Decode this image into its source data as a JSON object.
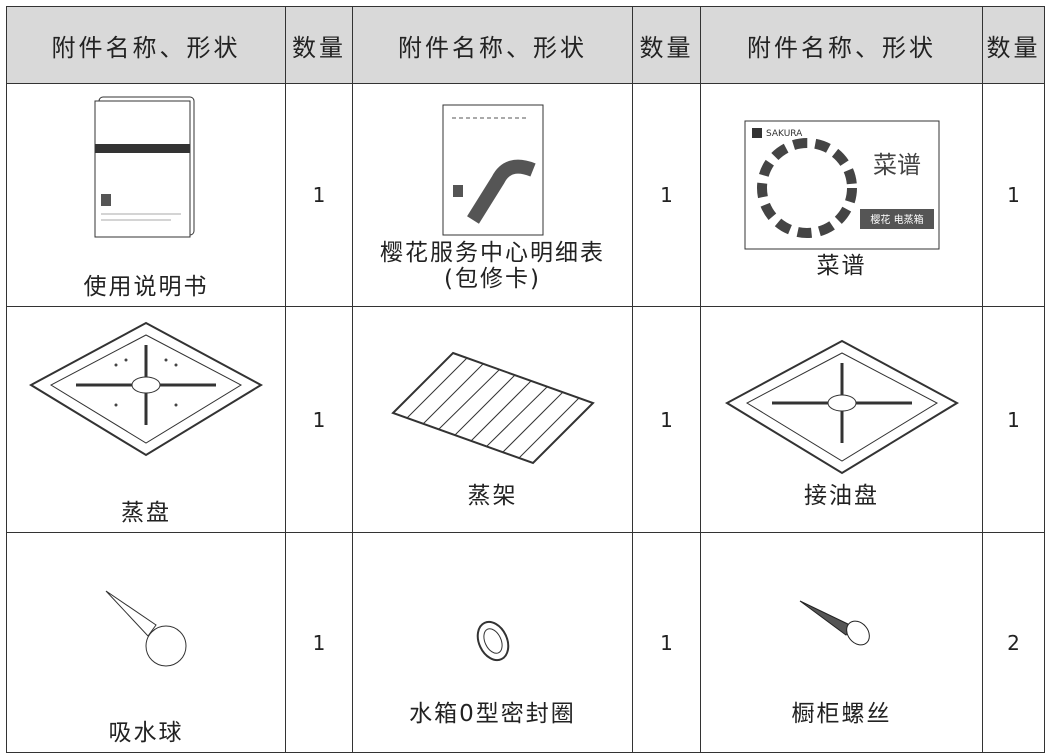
{
  "header": [
    "附件名称、形状",
    "数量",
    "附件名称、形状",
    "数量",
    "附件名称、形状",
    "数量"
  ],
  "rows": [
    [
      {
        "name": "使用说明书",
        "qty": 1
      },
      {
        "name": "樱花服务中心明细表",
        "note": "(包修卡)",
        "qty": 1
      },
      {
        "name": "菜谱",
        "qty": 1,
        "cover": {
          "brand": "SAKURA",
          "title": "菜谱",
          "label": "樱花 电蒸箱"
        }
      }
    ],
    [
      {
        "name": "蒸盘",
        "qty": 1
      },
      {
        "name": "蒸架",
        "qty": 1
      },
      {
        "name": "接油盘",
        "qty": 1
      }
    ],
    [
      {
        "name": "吸水球",
        "qty": 1
      },
      {
        "name": "水箱0型密封圈",
        "qty": 1
      },
      {
        "name": "橱柜螺丝",
        "qty": 2
      }
    ]
  ]
}
